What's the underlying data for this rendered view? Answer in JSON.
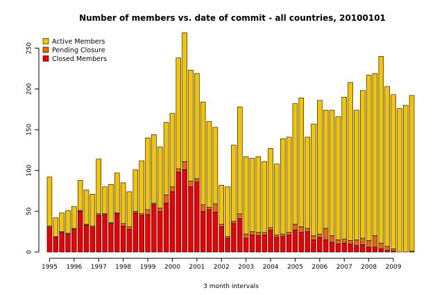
{
  "chart_data": {
    "type": "bar",
    "stacked": true,
    "title": "Number of members vs. date of commit - all countries,  20100101",
    "xlabel": "3 month intervals",
    "ylabel": "",
    "ylim": [
      0,
      270
    ],
    "yticks": [
      0,
      50,
      100,
      150,
      200,
      250
    ],
    "grid": false,
    "legend_position": "top-left",
    "year_labels": [
      "1995",
      "1996",
      "1997",
      "1998",
      "1999",
      "2000",
      "2001",
      "2002",
      "2003",
      "2004",
      "2005",
      "2006",
      "2007",
      "2008",
      "2009"
    ],
    "categories": [
      "1995 Q1",
      "1995 Q2",
      "1995 Q3",
      "1995 Q4",
      "1996 Q1",
      "1996 Q2",
      "1996 Q3",
      "1996 Q4",
      "1997 Q1",
      "1997 Q2",
      "1997 Q3",
      "1997 Q4",
      "1998 Q1",
      "1998 Q2",
      "1998 Q3",
      "1998 Q4",
      "1999 Q1",
      "1999 Q2",
      "1999 Q3",
      "1999 Q4",
      "2000 Q1",
      "2000 Q2",
      "2000 Q3",
      "2000 Q4",
      "2001 Q1",
      "2001 Q2",
      "2001 Q3",
      "2001 Q4",
      "2002 Q1",
      "2002 Q2",
      "2002 Q3",
      "2002 Q4",
      "2003 Q1",
      "2003 Q2",
      "2003 Q3",
      "2003 Q4",
      "2004 Q1",
      "2004 Q2",
      "2004 Q3",
      "2004 Q4",
      "2005 Q1",
      "2005 Q2",
      "2005 Q3",
      "2005 Q4",
      "2006 Q1",
      "2006 Q2",
      "2006 Q3",
      "2006 Q4",
      "2007 Q1",
      "2007 Q2",
      "2007 Q3",
      "2007 Q4",
      "2008 Q1",
      "2008 Q2",
      "2008 Q3",
      "2008 Q4",
      "2009 Q1",
      "2009 Q2",
      "2009 Q3",
      "2009 Q4"
    ],
    "series": [
      {
        "name": "Closed Members",
        "color": "#ee0000",
        "values": [
          30,
          18,
          24,
          22,
          28,
          50,
          33,
          30,
          45,
          46,
          35,
          47,
          32,
          28,
          48,
          45,
          46,
          58,
          50,
          60,
          74,
          98,
          101,
          80,
          86,
          50,
          52,
          49,
          31,
          17,
          35,
          41,
          17,
          21,
          20,
          21,
          27,
          18,
          19,
          21,
          27,
          24,
          25,
          15,
          18,
          15,
          12,
          10,
          11,
          10,
          8,
          9,
          6,
          6,
          4,
          2,
          1,
          0,
          0,
          1
        ]
      },
      {
        "name": "Pending Closure",
        "color": "#ee6600",
        "values": [
          2,
          1,
          1,
          1,
          1,
          1,
          1,
          2,
          2,
          1,
          1,
          1,
          3,
          3,
          2,
          2,
          6,
          2,
          4,
          10,
          6,
          4,
          10,
          7,
          4,
          8,
          3,
          10,
          3,
          2,
          3,
          6,
          5,
          4,
          4,
          3,
          3,
          3,
          3,
          3,
          7,
          7,
          4,
          5,
          4,
          14,
          8,
          5,
          5,
          4,
          7,
          8,
          8,
          14,
          7,
          5,
          3,
          0,
          0,
          0
        ]
      },
      {
        "name": "Active Members",
        "color": "#f5c400",
        "values": [
          60,
          23,
          23,
          28,
          27,
          37,
          42,
          39,
          67,
          33,
          47,
          49,
          50,
          43,
          51,
          65,
          88,
          84,
          75,
          89,
          90,
          136,
          158,
          136,
          129,
          126,
          105,
          94,
          48,
          61,
          93,
          131,
          95,
          90,
          93,
          87,
          97,
          87,
          117,
          117,
          148,
          158,
          112,
          137,
          164,
          145,
          154,
          151,
          174,
          194,
          159,
          181,
          203,
          199,
          229,
          196,
          189,
          176,
          180,
          191
        ]
      }
    ]
  }
}
